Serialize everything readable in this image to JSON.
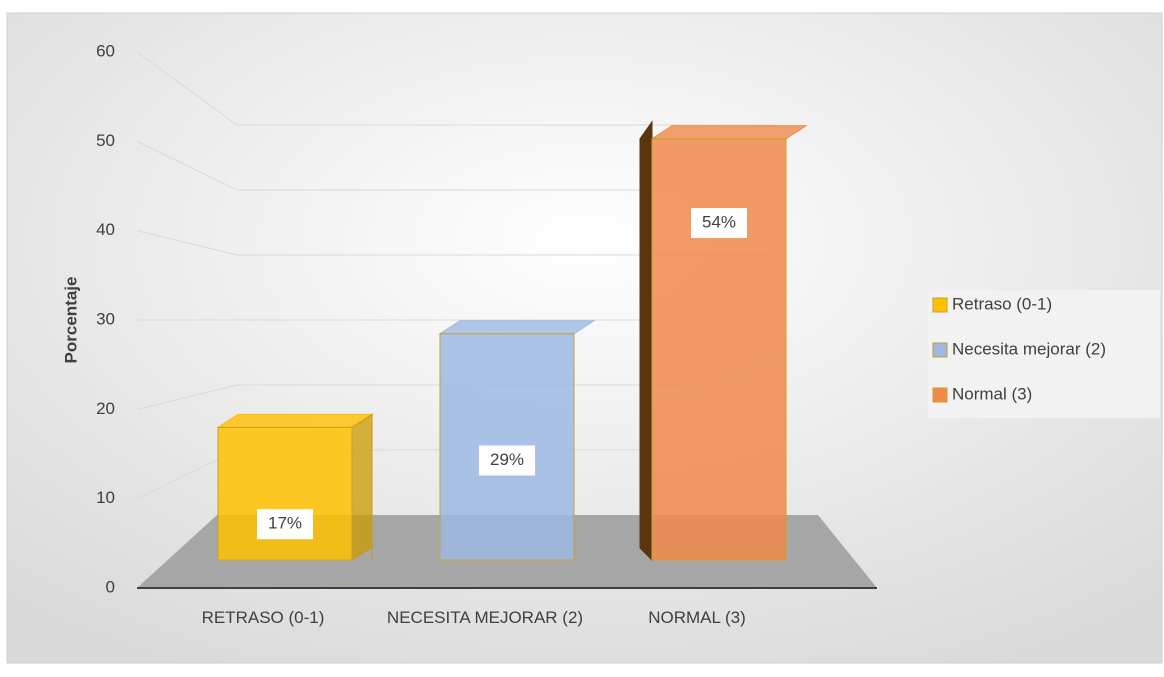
{
  "chart_data": {
    "type": "bar3d",
    "categories": [
      "RETRASO (0-1)",
      "NECESITA MEJORAR (2)",
      "NORMAL (3)"
    ],
    "values": [
      17,
      29,
      54
    ],
    "value_labels": [
      "17%",
      "29%",
      "54%"
    ],
    "colors": [
      "#ffc000",
      "#9db8e4",
      "#f0894a"
    ],
    "legend": [
      "Retraso (0-1)",
      "Necesita mejorar (2)",
      "Normal (3)"
    ],
    "y_label": "Porcentaje",
    "ylim": [
      0,
      60
    ],
    "yticks": [
      0,
      10,
      20,
      30,
      40,
      50,
      60
    ],
    "grid": true,
    "legend_position": "right"
  }
}
